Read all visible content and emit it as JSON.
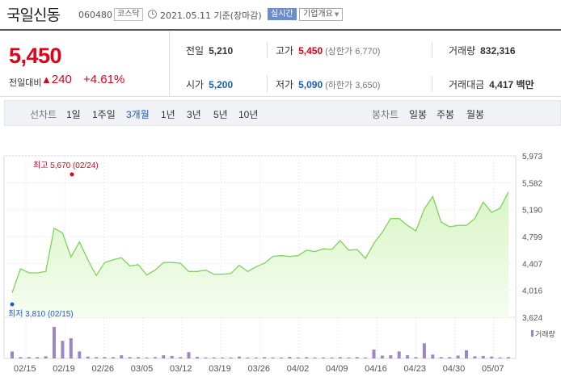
{
  "header": {
    "name": "국일신동",
    "code": "060480",
    "market": "코스닥",
    "base_date": "2021.05.11 기준(장마감)",
    "realtime": "실시간",
    "company_info": "기업개요"
  },
  "price": {
    "current": "5,450",
    "change_label": "전일대비",
    "change_arrow": "▲",
    "change": "240",
    "change_pct": "+4.61%"
  },
  "stats": {
    "prev_close_label": "전일",
    "prev_close": "5,210",
    "high_label": "고가",
    "high": "5,450",
    "upper_limit": "(상한가 6,770)",
    "volume_label": "거래량",
    "volume": "832,316",
    "open_label": "시가",
    "open": "5,200",
    "low_label": "저가",
    "low": "5,090",
    "lower_limit": "(하한가 3,650)",
    "amount_label": "거래대금",
    "amount": "4,417 백만"
  },
  "tabs": {
    "line_chart_label": "선차트",
    "line_periods": [
      "1일",
      "1주일",
      "3개월",
      "1년",
      "3년",
      "5년",
      "10년"
    ],
    "active": "3개월",
    "candle_chart_label": "봉차트",
    "candle_periods": [
      "일봉",
      "주봉",
      "월봉"
    ]
  },
  "chart_data": {
    "type": "area",
    "y_ticks": [
      "5,973",
      "5,582",
      "5,190",
      "4,799",
      "4,407",
      "4,016",
      "3,624"
    ],
    "ylim": [
      3624,
      5973
    ],
    "x_ticks": [
      "02/15",
      "02/19",
      "02/26",
      "03/05",
      "03/12",
      "03/19",
      "03/26",
      "04/02",
      "04/09",
      "04/16",
      "04/23",
      "04/30",
      "05/07"
    ],
    "high_label": "최고 5,670 (02/24)",
    "low_label": "최저 3,810 (02/15)",
    "volume_label": "거래량",
    "colors": {
      "line": "#7fd35a",
      "fill": "#d8f5c5",
      "volume": "#9b86c6",
      "high": "#e2001a",
      "low": "#1e5bc6"
    },
    "prices": [
      3980,
      4330,
      4270,
      4270,
      4290,
      4920,
      4850,
      4500,
      4720,
      4460,
      4230,
      4420,
      4460,
      4490,
      4370,
      4390,
      4240,
      4310,
      4420,
      4420,
      4410,
      4290,
      4290,
      4310,
      4250,
      4250,
      4260,
      4380,
      4290,
      4360,
      4410,
      4510,
      4520,
      4510,
      4520,
      4600,
      4580,
      4620,
      4610,
      4740,
      4600,
      4610,
      4480,
      4700,
      4860,
      5060,
      5060,
      4960,
      4880,
      5200,
      5380,
      5010,
      4940,
      4960,
      4960,
      5060,
      5300,
      5150,
      5210,
      5450
    ],
    "volumes": [
      0.22,
      0.04,
      0.04,
      0.04,
      0.07,
      1.0,
      0.56,
      0.64,
      0.22,
      0.06,
      0.04,
      0.04,
      0.04,
      0.1,
      0.04,
      0.04,
      0.03,
      0.04,
      0.1,
      0.08,
      0.04,
      0.2,
      0.05,
      0.03,
      0.03,
      0.03,
      0.03,
      0.06,
      0.03,
      0.03,
      0.04,
      0.03,
      0.03,
      0.05,
      0.03,
      0.04,
      0.03,
      0.03,
      0.03,
      0.04,
      0.03,
      0.04,
      0.03,
      0.28,
      0.09,
      0.1,
      0.22,
      0.1,
      0.04,
      0.48,
      0.12,
      0.04,
      0.04,
      0.09,
      0.26,
      0.07,
      0.08,
      0.06,
      0.03,
      0.04
    ]
  }
}
